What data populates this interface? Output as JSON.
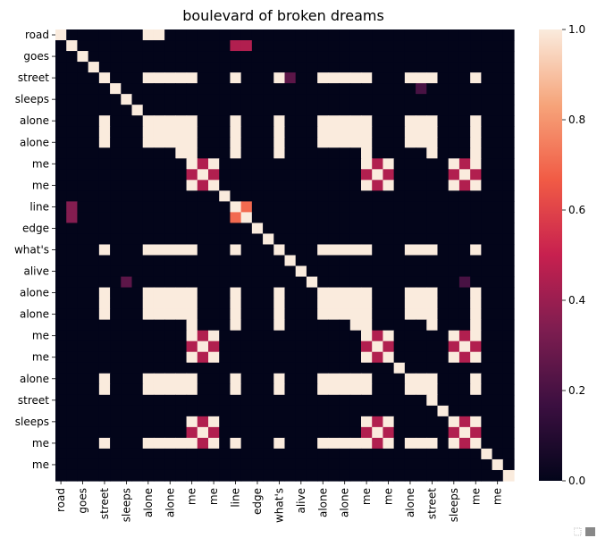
{
  "chart_data": {
    "type": "heatmap",
    "title": "boulevard of broken dreams",
    "xlabel": "",
    "ylabel": "",
    "x_tick_labels": [
      "road",
      "goes",
      "street",
      "sleeps",
      "alone",
      "alone",
      "me",
      "me",
      "line",
      "edge",
      "what's",
      "alive",
      "alone",
      "alone",
      "me",
      "me",
      "alone",
      "street",
      "sleeps",
      "me",
      "me"
    ],
    "y_tick_labels": [
      "road",
      "goes",
      "street",
      "sleeps",
      "alone",
      "alone",
      "me",
      "me",
      "line",
      "edge",
      "what's",
      "alive",
      "alone",
      "alone",
      "me",
      "me",
      "alone",
      "street",
      "sleeps",
      "me",
      "me"
    ],
    "tokens": [
      "road",
      "",
      "goes",
      "",
      "street",
      "",
      "sleeps",
      "",
      "alone",
      "",
      "alone",
      "",
      "me",
      "",
      "me",
      "",
      "line",
      "",
      "edge",
      "",
      "what's",
      "",
      "alive",
      "",
      "alone",
      "",
      "alone",
      "",
      "me",
      "",
      "me",
      "",
      "alone",
      "",
      "street",
      "",
      "sleeps",
      "",
      "me",
      "",
      "me",
      ""
    ],
    "alone_rows": [
      8,
      9,
      10,
      24,
      25,
      26,
      32,
      33
    ],
    "alone_row_pattern": [
      4,
      8,
      9,
      10,
      11,
      12,
      16,
      20,
      24,
      25,
      26,
      27,
      28,
      32,
      33,
      34,
      38
    ],
    "me_block_pattern": [
      [
        1,
        0,
        1
      ],
      [
        0,
        1,
        0
      ],
      [
        1,
        0,
        1
      ]
    ],
    "me_blocks": [
      12,
      28,
      36
    ],
    "blend_rows": [
      11,
      27
    ],
    "extra_cells": [
      [
        0,
        8,
        1
      ],
      [
        0,
        9,
        1
      ],
      [
        1,
        16,
        0.45
      ],
      [
        1,
        17,
        0.45
      ],
      [
        4,
        21,
        0.25
      ],
      [
        5,
        33,
        0.2
      ],
      [
        16,
        1,
        0.35
      ],
      [
        16,
        17,
        0.7
      ],
      [
        17,
        16,
        0.7
      ],
      [
        17,
        1,
        0.35
      ],
      [
        23,
        6,
        0.25
      ],
      [
        23,
        37,
        0.2
      ]
    ],
    "colorbar": {
      "min": 0.0,
      "max": 1.0,
      "ticks": [
        "0.0",
        "0.2",
        "0.4",
        "0.6",
        "0.8",
        "1.0"
      ]
    },
    "colormap": [
      "#03051a",
      "#3b0f40",
      "#7d1d50",
      "#c7204f",
      "#f15b45",
      "#f6a47a",
      "#faebdd"
    ],
    "grid": false,
    "legend": "colorbar-right"
  }
}
